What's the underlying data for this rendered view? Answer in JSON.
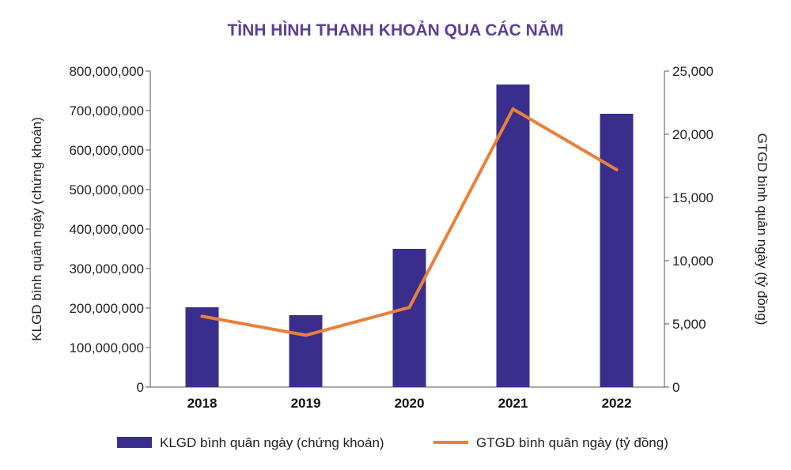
{
  "chart_data": {
    "type": "bar",
    "title": "TÌNH HÌNH THANH KHOẢN QUA CÁC NĂM",
    "categories": [
      "2018",
      "2019",
      "2020",
      "2021",
      "2022"
    ],
    "ylabel": "KLGD bình quân ngày (chứng khoán)",
    "y2label": "GTGD bình quân ngày (tỷ đồng)",
    "ylim": [
      0,
      800000000
    ],
    "y2lim": [
      0,
      25000
    ],
    "yticks": [
      "0",
      "100,000,000",
      "200,000,000",
      "300,000,000",
      "400,000,000",
      "500,000,000",
      "600,000,000",
      "700,000,000",
      "800,000,000"
    ],
    "y2ticks": [
      "0",
      "5,000",
      "10,000",
      "15,000",
      "20,000",
      "25,000"
    ],
    "grid": false,
    "legend_position": "bottom",
    "series": [
      {
        "name": "KLGD bình quân ngày (chứng khoán)",
        "type": "bar",
        "axis": "left",
        "color": "#3a2e8c",
        "values": [
          202000000,
          182000000,
          350000000,
          766000000,
          692000000
        ]
      },
      {
        "name": "GTGD bình quân ngày (tỷ đồng)",
        "type": "line",
        "axis": "right",
        "color": "#e8813a",
        "values": [
          5600,
          4100,
          6300,
          22000,
          17200
        ]
      }
    ]
  },
  "colors": {
    "title": "#5b3f96",
    "bar": "#3a2e8c",
    "line": "#e8813a",
    "axis": "#555555"
  }
}
